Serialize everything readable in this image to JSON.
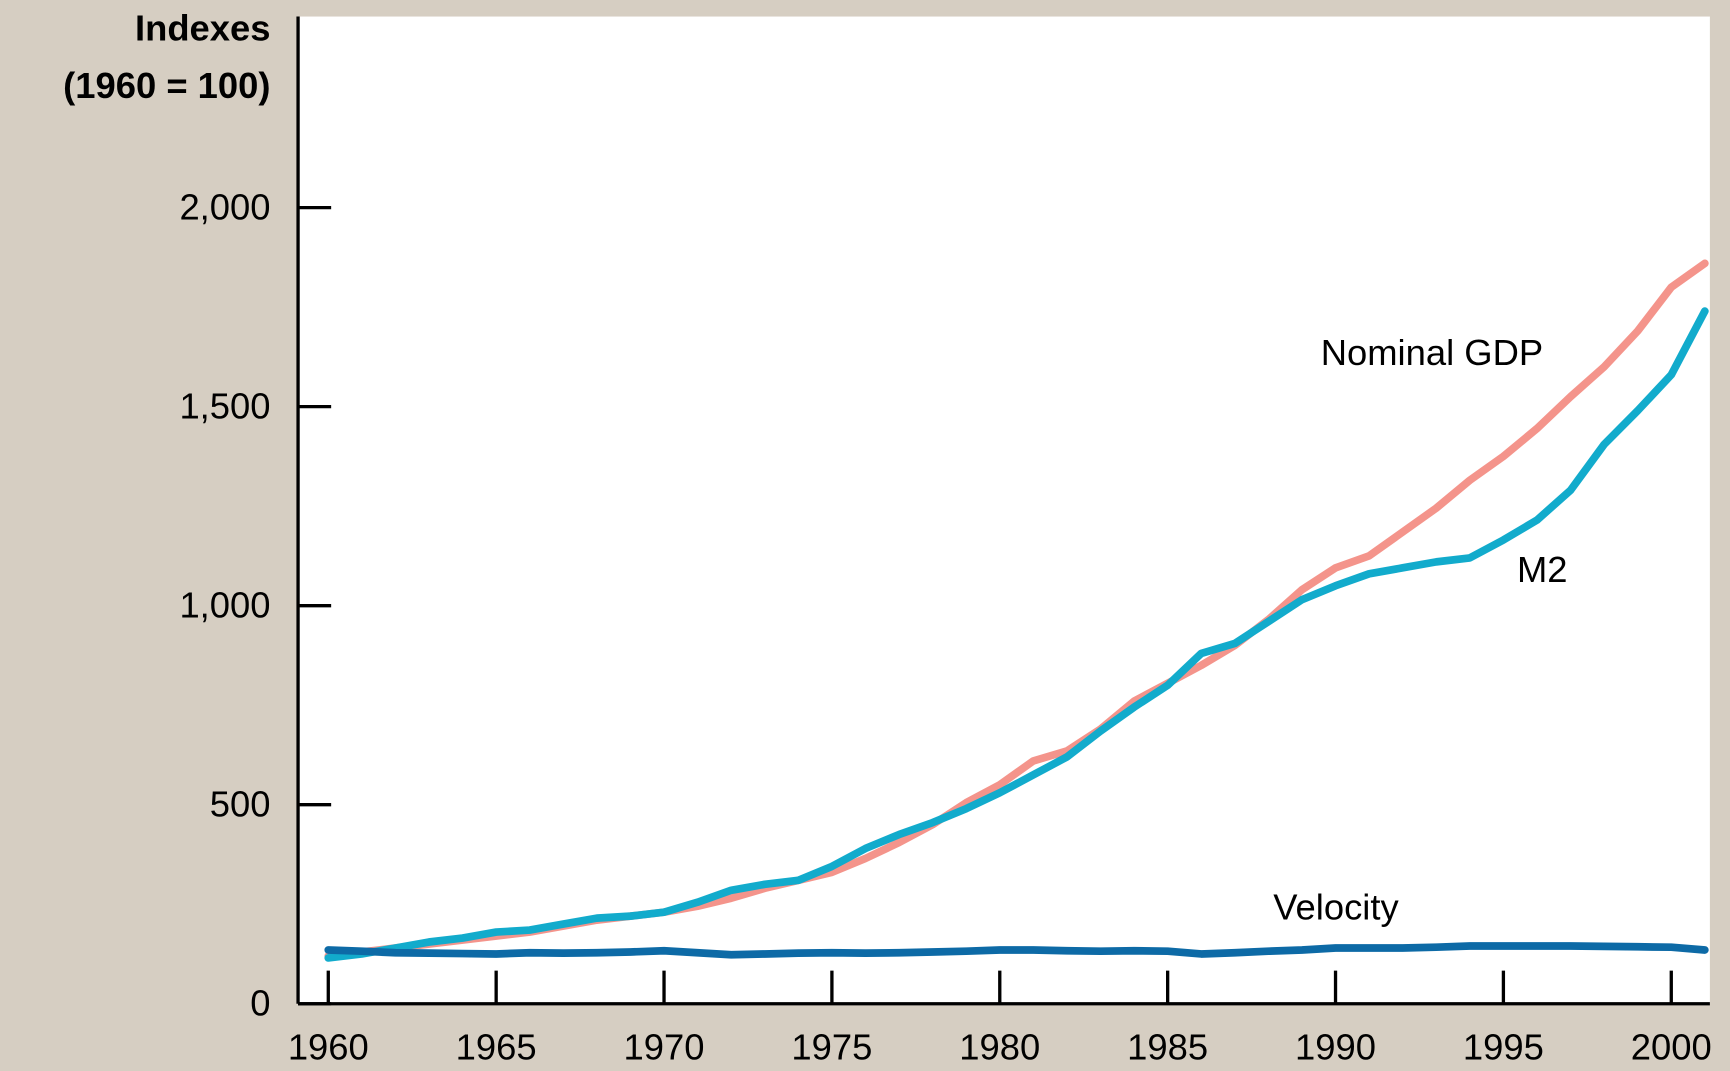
{
  "chart_data": {
    "type": "line",
    "y_label": [
      "Indexes",
      "(1960 = 100)"
    ],
    "x": [
      1960,
      1961,
      1962,
      1963,
      1964,
      1965,
      1966,
      1967,
      1968,
      1969,
      1970,
      1971,
      1972,
      1973,
      1974,
      1975,
      1976,
      1977,
      1978,
      1979,
      1980,
      1981,
      1982,
      1983,
      1984,
      1985,
      1986,
      1987,
      1988,
      1989,
      1990,
      1991,
      1992,
      1993,
      1994,
      1995,
      1996,
      1997,
      1998,
      1999,
      2000,
      2001
    ],
    "series": [
      {
        "name": "Nominal GDP",
        "color": "#f4948b",
        "values": [
          120,
          130,
          140,
          150,
          160,
          170,
          180,
          195,
          210,
          220,
          230,
          245,
          265,
          290,
          310,
          330,
          365,
          405,
          450,
          505,
          550,
          610,
          635,
          690,
          760,
          805,
          850,
          900,
          965,
          1040,
          1095,
          1125,
          1185,
          1245,
          1315,
          1375,
          1445,
          1525,
          1600,
          1690,
          1800,
          1860
        ]
      },
      {
        "name": "M2",
        "color": "#12abcc",
        "values": [
          115,
          125,
          140,
          155,
          165,
          180,
          185,
          200,
          215,
          220,
          230,
          255,
          285,
          300,
          310,
          345,
          390,
          425,
          455,
          490,
          530,
          575,
          620,
          685,
          745,
          800,
          880,
          905,
          960,
          1015,
          1050,
          1080,
          1095,
          1110,
          1120,
          1165,
          1215,
          1290,
          1405,
          1490,
          1580,
          1740
        ]
      },
      {
        "name": "Velocity",
        "color": "#0d6aa6",
        "values": [
          135,
          132,
          128,
          127,
          126,
          125,
          128,
          127,
          128,
          130,
          133,
          128,
          123,
          125,
          127,
          128,
          127,
          128,
          130,
          132,
          135,
          135,
          133,
          132,
          133,
          132,
          125,
          128,
          132,
          135,
          140,
          140,
          140,
          142,
          145,
          145,
          145,
          145,
          144,
          143,
          142,
          135
        ]
      }
    ],
    "xlim": [
      1959.1,
      2001.15
    ],
    "ylim": [
      0,
      2480
    ],
    "xticks": [
      1960,
      1965,
      1970,
      1975,
      1980,
      1985,
      1990,
      1995,
      2000
    ],
    "yticks": [
      0,
      500,
      {
        "value": 1000,
        "label": "1,000"
      },
      {
        "value": 1500,
        "label": "1,500"
      },
      {
        "value": 2000,
        "label": "2,000"
      }
    ]
  }
}
